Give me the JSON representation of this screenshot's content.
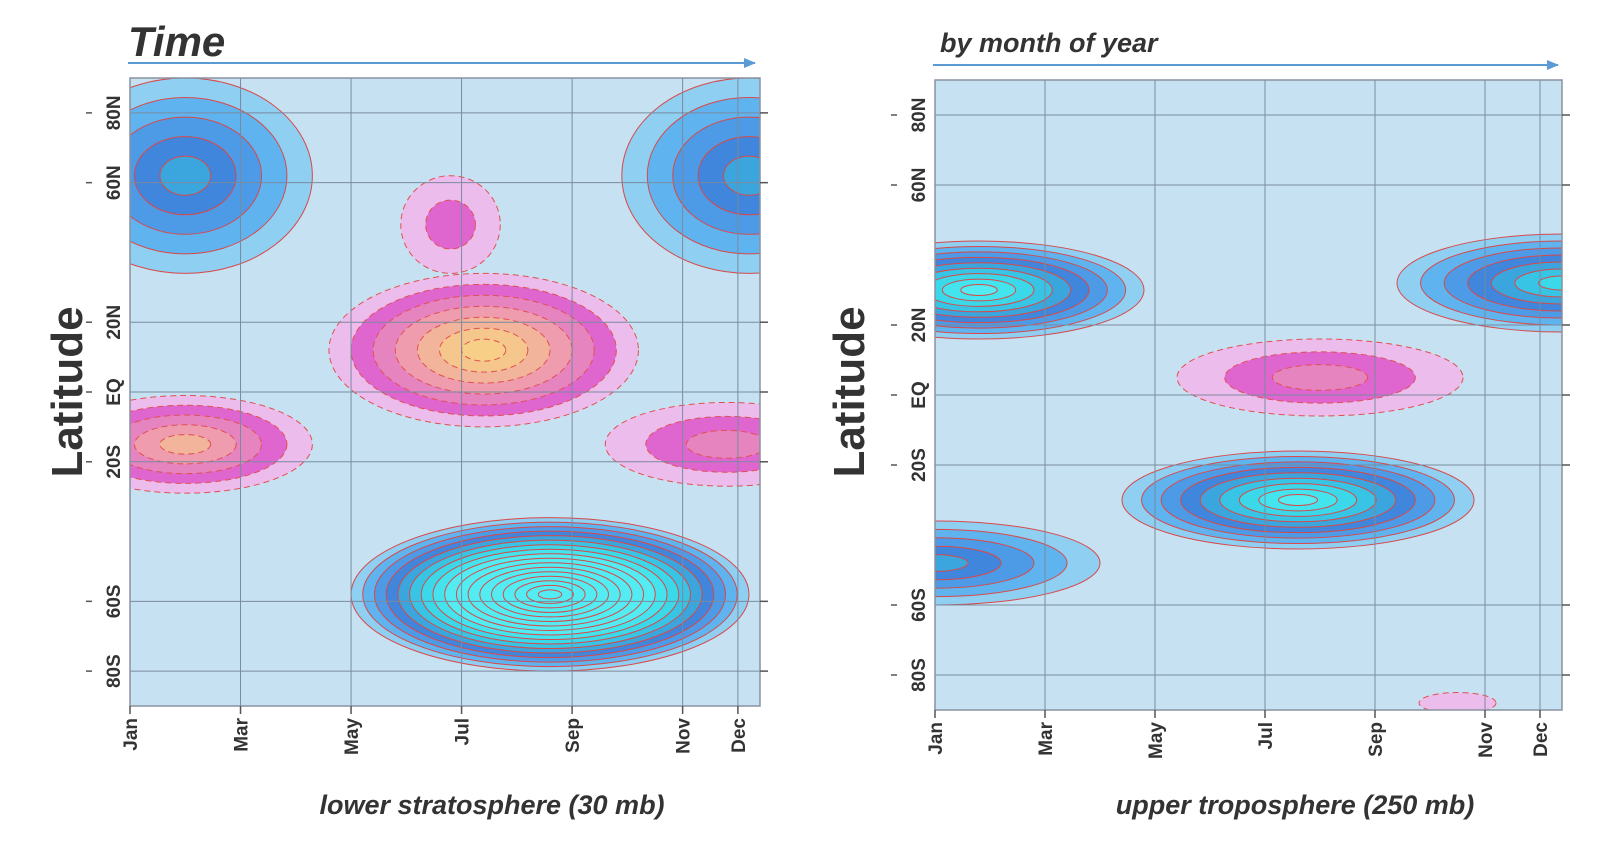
{
  "colors": {
    "month_jan": "#6a3d9a",
    "month_jul": "#6aa84f",
    "month_default": "#333333",
    "arrow": "#5b9bd5",
    "neg_contour": "#d94848",
    "pos_contour": "#e05050",
    "grid": "#7a8aa0",
    "frame": "#8892a0"
  },
  "header": {
    "time_label": "Time",
    "month_of_year_label": "by month of year"
  },
  "chart_data": [
    {
      "type": "heatmap",
      "title": "",
      "subtitle": "",
      "xlabel": "lower stratosphere (30 mb)",
      "ylabel": "Latitude",
      "x_ticks": [
        "Jan",
        "Mar",
        "May",
        "Jul",
        "Sep",
        "Nov",
        "Dec"
      ],
      "x_tick_months": [
        1,
        3,
        5,
        7,
        9,
        11,
        12
      ],
      "y_ticks": [
        "80N",
        "60N",
        "20N",
        "EQ",
        "20S",
        "60S",
        "80S"
      ],
      "y_tick_values": [
        80,
        60,
        20,
        0,
        -20,
        -60,
        -80
      ],
      "ylim": [
        -90,
        90
      ],
      "xlim": [
        1,
        12.4
      ],
      "grid": true,
      "features": [
        {
          "kind": "minimum",
          "month": 2.0,
          "lat": 62,
          "depth": 5,
          "rx": 2.3,
          "ry": 28
        },
        {
          "kind": "minimum",
          "month": 12.2,
          "lat": 62,
          "depth": 5,
          "rx": 2.3,
          "ry": 28
        },
        {
          "kind": "minimum",
          "month": 8.6,
          "lat": -58,
          "depth": 17,
          "rx": 3.6,
          "ry": 22
        },
        {
          "kind": "maximum",
          "month": 7.4,
          "lat": 12,
          "depth": 7,
          "rx": 2.8,
          "ry": 22
        },
        {
          "kind": "maximum",
          "month": 6.8,
          "lat": 48,
          "depth": 2,
          "rx": 0.9,
          "ry": 14
        },
        {
          "kind": "maximum",
          "month": 2.0,
          "lat": -15,
          "depth": 5,
          "rx": 2.3,
          "ry": 14
        },
        {
          "kind": "maximum",
          "month": 11.8,
          "lat": -15,
          "depth": 3,
          "rx": 2.2,
          "ry": 12
        }
      ]
    },
    {
      "type": "heatmap",
      "title": "",
      "subtitle": "",
      "xlabel": "upper troposphere (250 mb)",
      "ylabel": "Latitude",
      "x_ticks": [
        "Jan",
        "Mar",
        "May",
        "Jul",
        "Sep",
        "Nov",
        "Dec"
      ],
      "x_tick_months": [
        1,
        3,
        5,
        7,
        9,
        11,
        12
      ],
      "y_ticks": [
        "80N",
        "60N",
        "20N",
        "EQ",
        "20S",
        "60S",
        "80S"
      ],
      "y_tick_values": [
        80,
        60,
        20,
        0,
        -20,
        -60,
        -80
      ],
      "ylim": [
        -90,
        90
      ],
      "xlim": [
        1,
        12.4
      ],
      "grid": true,
      "features": [
        {
          "kind": "minimum",
          "month": 1.8,
          "lat": 30,
          "depth": 9,
          "rx": 3.0,
          "ry": 14
        },
        {
          "kind": "minimum",
          "month": 12.4,
          "lat": 32,
          "depth": 7,
          "rx": 3.0,
          "ry": 14
        },
        {
          "kind": "minimum",
          "month": 7.6,
          "lat": -30,
          "depth": 9,
          "rx": 3.2,
          "ry": 14
        },
        {
          "kind": "minimum",
          "month": 1.0,
          "lat": -48,
          "depth": 5,
          "rx": 3.0,
          "ry": 12
        },
        {
          "kind": "maximum",
          "month": 8.0,
          "lat": 5,
          "depth": 3,
          "rx": 2.6,
          "ry": 11
        },
        {
          "kind": "maximum",
          "month": 10.5,
          "lat": -88,
          "depth": 1,
          "rx": 0.7,
          "ry": 3
        }
      ]
    }
  ]
}
